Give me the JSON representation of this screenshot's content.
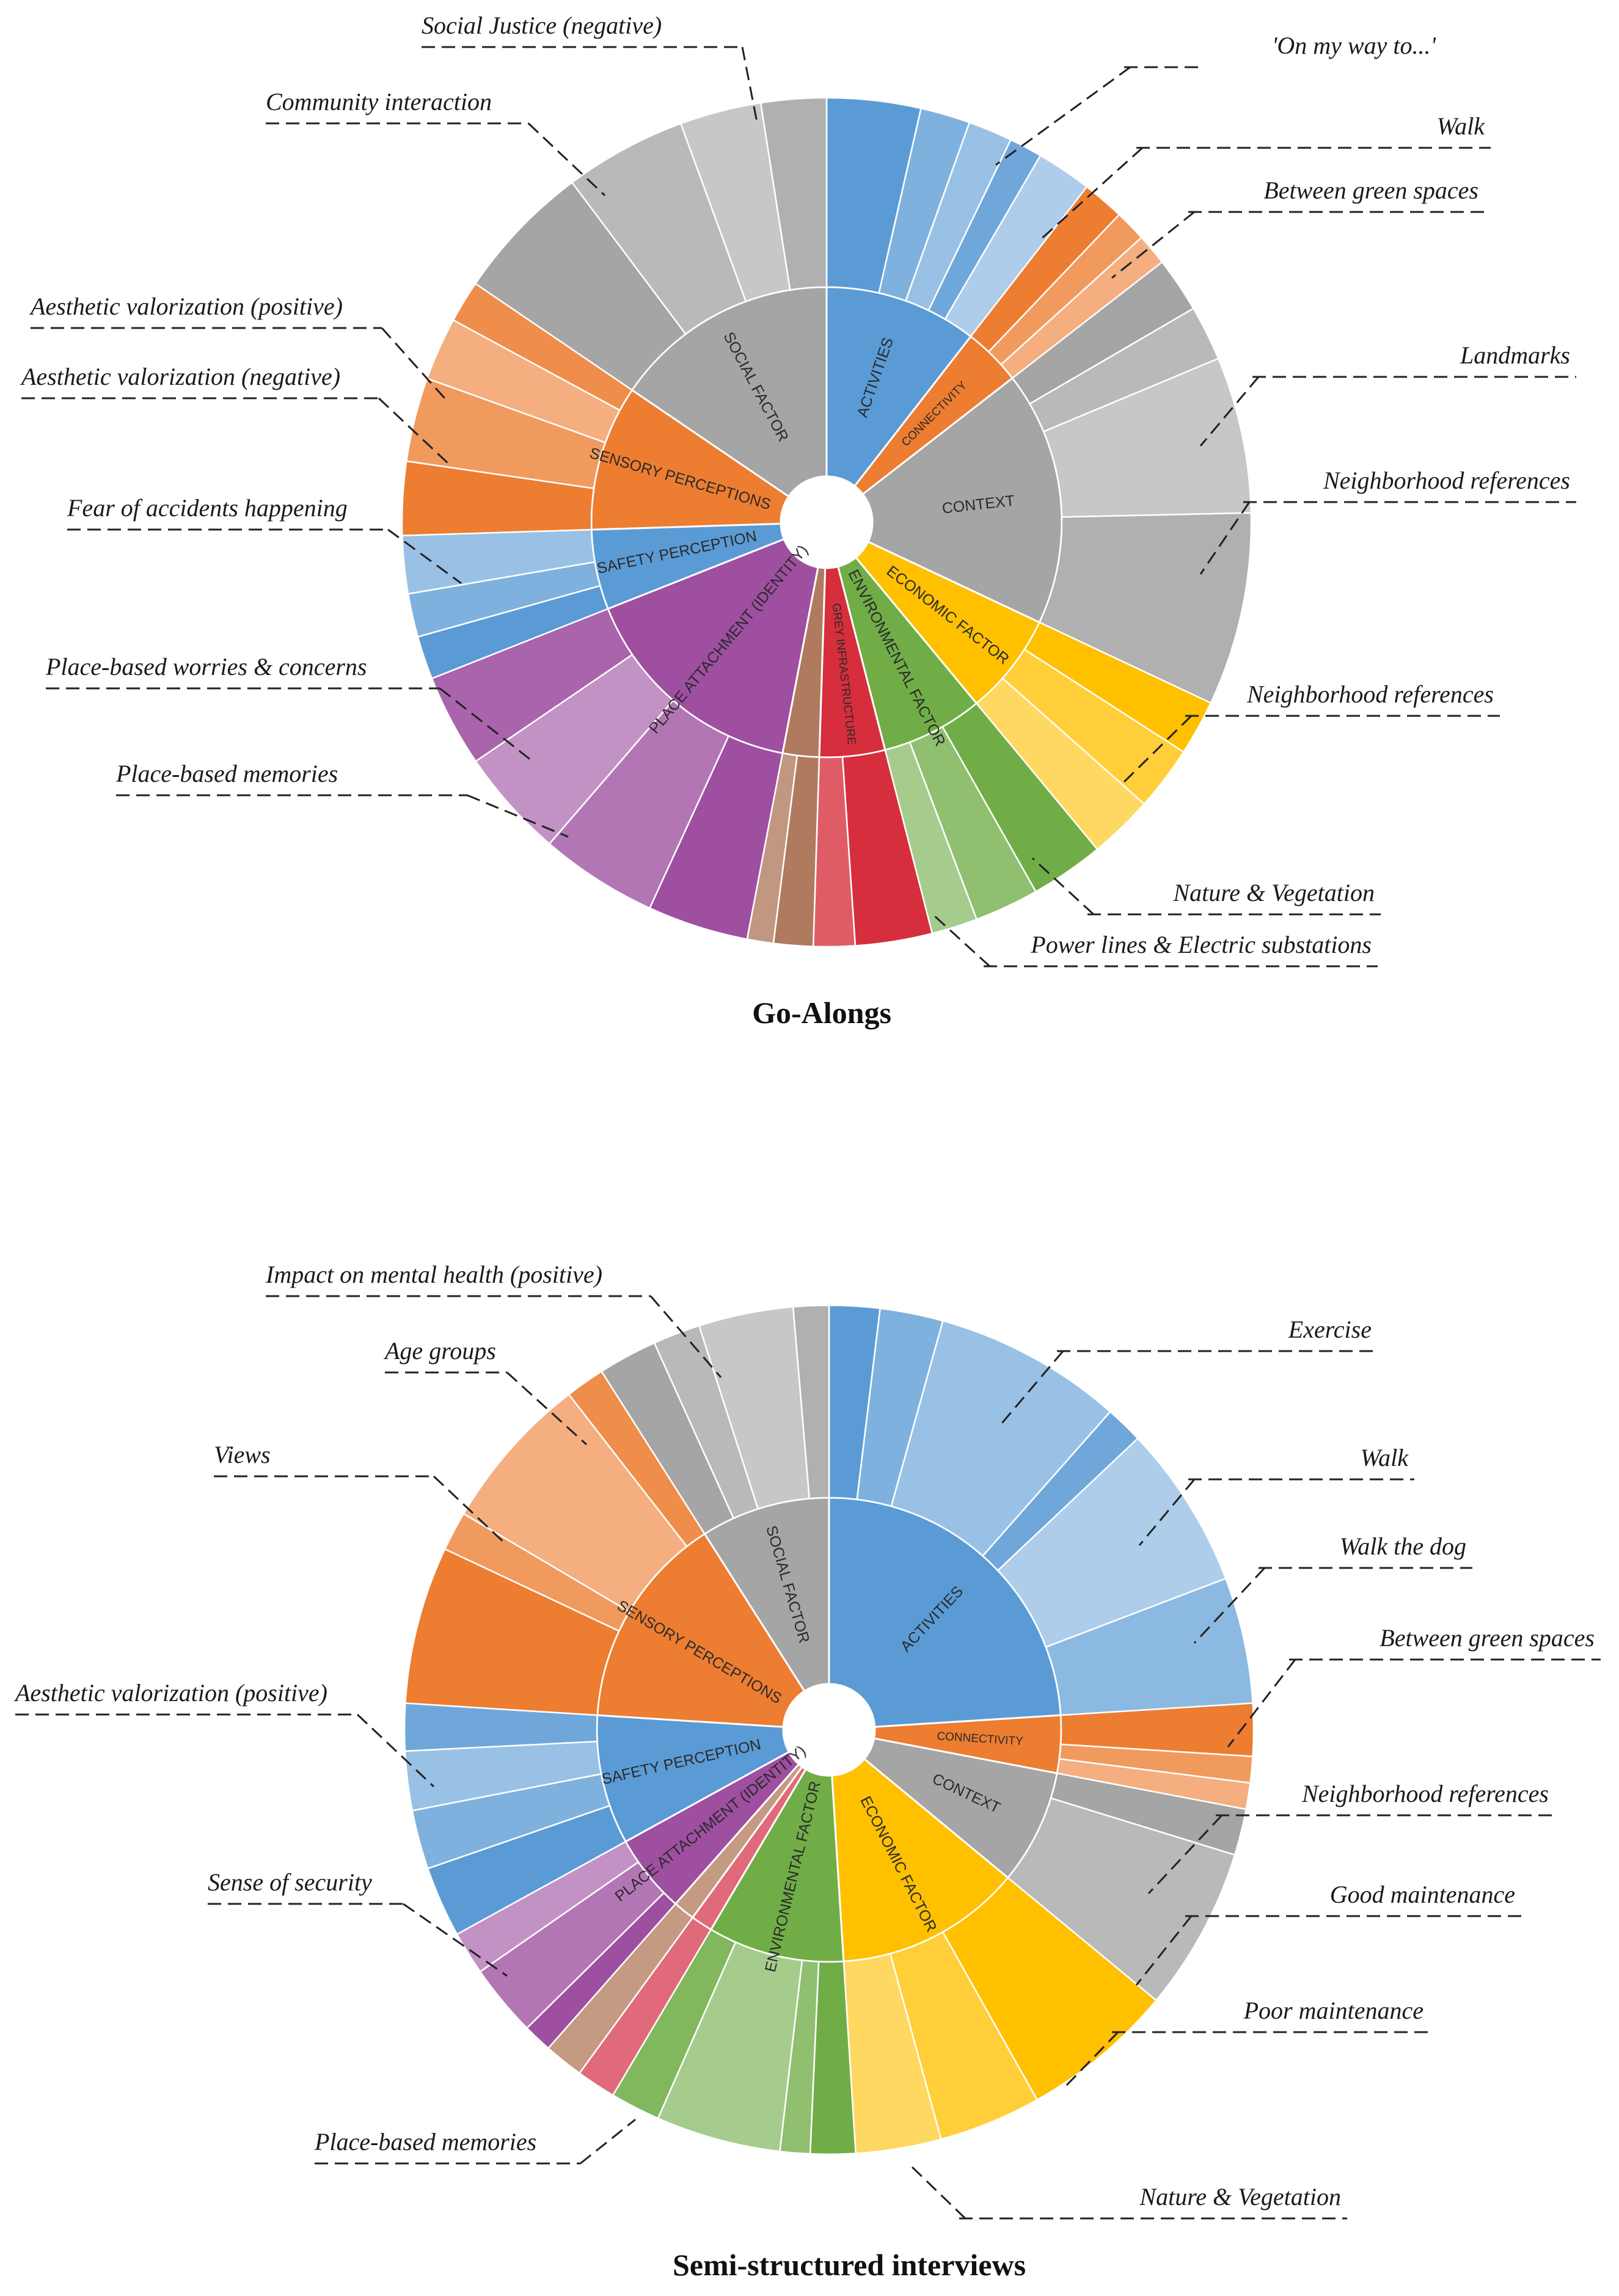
{
  "chart_data": [
    {
      "type": "sunburst",
      "title": "Go-Alongs",
      "inner_ring": [
        {
          "label": "ACTIVITIES",
          "value": 10.5,
          "color": "#5b9bd5"
        },
        {
          "label": "CONNECTIVITY",
          "value": 4.0,
          "color": "#ed7d31"
        },
        {
          "label": "CONTEXT",
          "value": 17.5,
          "color": "#a5a5a5"
        },
        {
          "label": "ECONOMIC FACTOR",
          "value": 7.0,
          "color": "#ffc000"
        },
        {
          "label": "ENVIRONMENTAL FACTOR",
          "value": 7.0,
          "color": "#70ad47"
        },
        {
          "label": "GREY INFRASTRUCTURE",
          "value": 4.5,
          "color": "#d62e3c"
        },
        {
          "label": "",
          "value": 2.5,
          "color": "#b07a5e"
        },
        {
          "label": "PLACE ATTACHMENT (IDENTITY)",
          "value": 16.0,
          "color": "#9e4fa0"
        },
        {
          "label": "SAFETY PERCEPTION",
          "value": 5.5,
          "color": "#5b9bd5"
        },
        {
          "label": "SENSORY PERCEPTIONS",
          "value": 10.0,
          "color": "#ed7d31"
        },
        {
          "label": "SOCIAL FACTOR",
          "value": 15.5,
          "color": "#a5a5a5"
        }
      ],
      "annotations": [
        "Social Justice (negative)",
        "Community interaction",
        "Aesthetic valorization (positive)",
        "Aesthetic valorization (negative)",
        "Fear of accidents happening",
        "Place-based worries & concerns",
        "Place-based memories",
        "'On my way to...'",
        "Walk",
        "Between green spaces",
        "Landmarks",
        "Neighborhood references",
        "Neighborhood references",
        "Nature & Vegetation",
        "Power lines & Electric substations"
      ]
    },
    {
      "type": "sunburst",
      "title": "Semi-structured interviews",
      "inner_ring": [
        {
          "label": "ACTIVITIES",
          "value": 24.0,
          "color": "#5b9bd5"
        },
        {
          "label": "CONNECTIVITY",
          "value": 4.0,
          "color": "#ed7d31"
        },
        {
          "label": "CONTEXT",
          "value": 8.0,
          "color": "#a5a5a5"
        },
        {
          "label": "ECONOMIC FACTOR",
          "value": 13.0,
          "color": "#ffc000"
        },
        {
          "label": "ENVIRONMENTAL FACTOR",
          "value": 9.5,
          "color": "#70ad47"
        },
        {
          "label": "",
          "value": 1.5,
          "color": "#e06a7a"
        },
        {
          "label": "",
          "value": 1.5,
          "color": "#c49a82"
        },
        {
          "label": "PLACE ATTACHMENT (IDENTITY)",
          "value": 5.5,
          "color": "#9e4fa0"
        },
        {
          "label": "SAFETY PERCEPTION",
          "value": 9.0,
          "color": "#5b9bd5"
        },
        {
          "label": "SENSORY PERCEPTIONS",
          "value": 15.0,
          "color": "#ed7d31"
        },
        {
          "label": "SOCIAL FACTOR",
          "value": 9.0,
          "color": "#a5a5a5"
        }
      ],
      "annotations": [
        "Impact on mental health (positive)",
        "Age groups",
        "Views",
        "Aesthetic valorization (positive)",
        "Sense of security",
        "Place-based memories",
        "Exercise",
        "Walk",
        "Walk the dog",
        "Between green spaces",
        "Neighborhood references",
        "Good maintenance",
        "Poor maintenance",
        "Nature & Vegetation"
      ]
    }
  ]
}
